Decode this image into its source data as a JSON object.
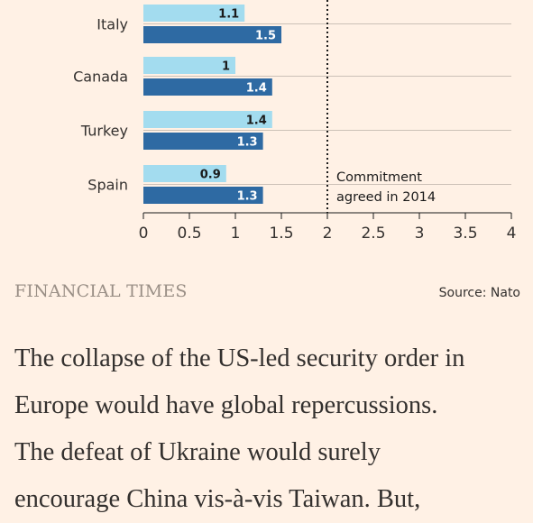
{
  "chart_data": {
    "type": "bar",
    "orientation": "horizontal",
    "categories": [
      "Italy",
      "Canada",
      "Turkey",
      "Spain"
    ],
    "series": [
      {
        "values": [
          1.1,
          1.0,
          1.4,
          0.9
        ],
        "value_labels": [
          "1.1",
          "1",
          "1.4",
          "0.9"
        ],
        "color": "#a3dcef"
      },
      {
        "values": [
          1.5,
          1.4,
          1.3,
          1.3
        ],
        "value_labels": [
          "1.5",
          "1.4",
          "1.3",
          "1.3"
        ],
        "color": "#2e6aa3"
      }
    ],
    "xlim": [
      0,
      4
    ],
    "xticks": [
      "0",
      "0.5",
      "1",
      "1.5",
      "2",
      "2.5",
      "3",
      "3.5",
      "4"
    ],
    "gridlines": true,
    "reference_line": {
      "value": 2,
      "style": "dotted",
      "label_lines": [
        "Commitment",
        "agreed in 2014"
      ]
    }
  },
  "footer": {
    "brand": "FINANCIAL TIMES",
    "source": "Source: Nato"
  },
  "article": {
    "lines": [
      "The collapse of the US-led security order in",
      "Europe would have global repercussions.",
      "The defeat of Ukraine would surely",
      "encourage China vis-à-vis Taiwan. But,"
    ]
  },
  "colors": {
    "background": "#fff1e5",
    "text": "#33302e",
    "grid": "#ccc1b7"
  }
}
